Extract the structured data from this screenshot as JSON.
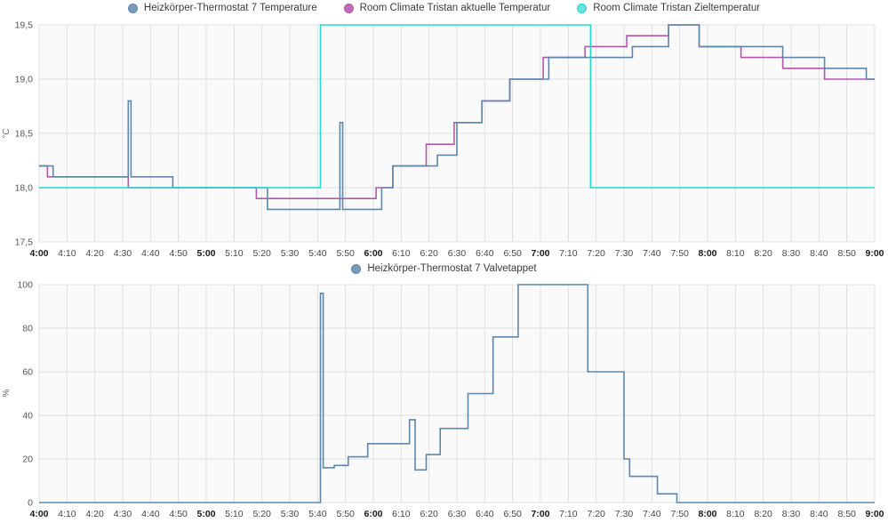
{
  "page": {
    "background": "#ffffff",
    "grid_color": "#e0e0e0",
    "plot_background": "#fafafa",
    "tick_label_color": "#474747",
    "bold_tick_label_color": "#1a1a1a",
    "y_label_color": "#555555",
    "unit_label_color": "#666666",
    "legend_text_color": "#3c3c3c"
  },
  "chart_data": [
    {
      "type": "line",
      "step": "after",
      "title": "",
      "unit": "°C",
      "xlabel": "",
      "ylabel": "°C",
      "x_range": [
        "4:00",
        "9:00"
      ],
      "ylim": [
        17.5,
        19.5
      ],
      "grid": true,
      "legend_position": "top-center",
      "x_tick_labels": [
        "4:00",
        "4:10",
        "4:20",
        "4:30",
        "4:40",
        "4:50",
        "5:00",
        "5:10",
        "5:20",
        "5:30",
        "5:40",
        "5:50",
        "6:00",
        "6:10",
        "6:20",
        "6:30",
        "6:40",
        "6:50",
        "7:00",
        "7:10",
        "7:20",
        "7:30",
        "7:40",
        "7:50",
        "8:00",
        "8:10",
        "8:20",
        "8:30",
        "8:40",
        "8:50",
        "9:00"
      ],
      "y_tick_labels": [
        "17,5",
        "18,0",
        "18,5",
        "19,0",
        "19,5"
      ],
      "draw_order": [
        1,
        0,
        2
      ],
      "series": [
        {
          "name": "Heizkörper-Thermostat 7 Temperature",
          "color": "#5e87ab",
          "legend_fill": "#7b9ab8",
          "points": [
            [
              "4:00",
              18.2
            ],
            [
              "4:05",
              18.1
            ],
            [
              "4:32",
              18.8
            ],
            [
              "4:33",
              18.1
            ],
            [
              "4:48",
              18.0
            ],
            [
              "5:22",
              17.8
            ],
            [
              "5:48",
              18.6
            ],
            [
              "5:49",
              17.8
            ],
            [
              "6:03",
              18.0
            ],
            [
              "6:07",
              18.2
            ],
            [
              "6:23",
              18.3
            ],
            [
              "6:30",
              18.6
            ],
            [
              "6:39",
              18.8
            ],
            [
              "6:49",
              19.0
            ],
            [
              "7:03",
              19.2
            ],
            [
              "7:33",
              19.3
            ],
            [
              "7:46",
              19.5
            ],
            [
              "7:57",
              19.3
            ],
            [
              "8:27",
              19.2
            ],
            [
              "8:42",
              19.1
            ],
            [
              "8:57",
              19.0
            ],
            [
              "9:00",
              19.0
            ]
          ]
        },
        {
          "name": "Room Climate Tristan aktuelle Temperatur",
          "color": "#b357ac",
          "legend_fill": "#bf6cb8",
          "points": [
            [
              "4:00",
              18.2
            ],
            [
              "4:03",
              18.1
            ],
            [
              "4:32",
              18.0
            ],
            [
              "5:18",
              17.9
            ],
            [
              "6:01",
              18.0
            ],
            [
              "6:07",
              18.2
            ],
            [
              "6:19",
              18.4
            ],
            [
              "6:29",
              18.6
            ],
            [
              "6:39",
              18.8
            ],
            [
              "6:49",
              19.0
            ],
            [
              "7:01",
              19.2
            ],
            [
              "7:16",
              19.3
            ],
            [
              "7:31",
              19.4
            ],
            [
              "7:46",
              19.5
            ],
            [
              "7:57",
              19.3
            ],
            [
              "8:12",
              19.2
            ],
            [
              "8:27",
              19.1
            ],
            [
              "8:42",
              19.0
            ],
            [
              "9:00",
              19.0
            ]
          ]
        },
        {
          "name": "Room Climate Tristan Zieltemperatur",
          "color": "#26d7d1",
          "legend_fill": "#6ce0da",
          "points": [
            [
              "4:00",
              18.0
            ],
            [
              "5:41",
              19.5
            ],
            [
              "7:18",
              18.0
            ],
            [
              "9:00",
              18.0
            ]
          ]
        }
      ]
    },
    {
      "type": "line",
      "step": "after",
      "title": "",
      "unit": "%",
      "xlabel": "",
      "ylabel": "%",
      "x_range": [
        "4:00",
        "9:00"
      ],
      "ylim": [
        0,
        100
      ],
      "grid": true,
      "legend_position": "top-center",
      "x_tick_labels": [
        "4:00",
        "4:10",
        "4:20",
        "4:30",
        "4:40",
        "4:50",
        "5:00",
        "5:10",
        "5:20",
        "5:30",
        "5:40",
        "5:50",
        "6:00",
        "6:10",
        "6:20",
        "6:30",
        "6:40",
        "6:50",
        "7:00",
        "7:10",
        "7:20",
        "7:30",
        "7:40",
        "7:50",
        "8:00",
        "8:10",
        "8:20",
        "8:30",
        "8:40",
        "8:50",
        "9:00"
      ],
      "y_tick_labels": [
        "0",
        "20",
        "40",
        "60",
        "80",
        "100"
      ],
      "draw_order": [
        0
      ],
      "series": [
        {
          "name": "Heizkörper-Thermostat 7 Valvetappet",
          "color": "#5e87ab",
          "legend_fill": "#7b9ab8",
          "points": [
            [
              "4:00",
              0
            ],
            [
              "5:41",
              96
            ],
            [
              "5:42",
              16
            ],
            [
              "5:46",
              17
            ],
            [
              "5:51",
              21
            ],
            [
              "5:58",
              27
            ],
            [
              "6:13",
              38
            ],
            [
              "6:15",
              15
            ],
            [
              "6:19",
              22
            ],
            [
              "6:24",
              34
            ],
            [
              "6:34",
              50
            ],
            [
              "6:43",
              76
            ],
            [
              "6:52",
              100
            ],
            [
              "7:17",
              60
            ],
            [
              "7:30",
              20
            ],
            [
              "7:32",
              12
            ],
            [
              "7:42",
              4
            ],
            [
              "7:49",
              0
            ],
            [
              "9:00",
              0
            ]
          ]
        }
      ]
    }
  ]
}
